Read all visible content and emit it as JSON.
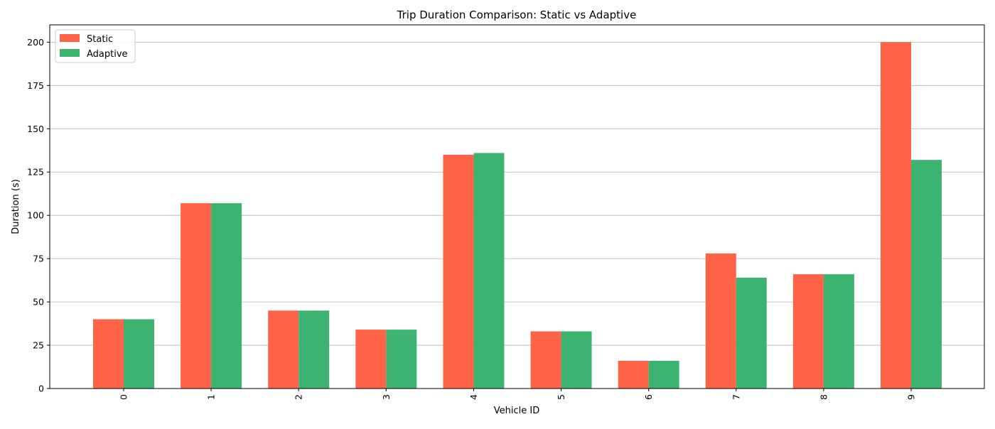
{
  "chart_data": {
    "type": "bar",
    "title": "Trip Duration Comparison: Static vs Adaptive",
    "xlabel": "Vehicle ID",
    "ylabel": "Duration (s)",
    "categories": [
      "0",
      "1",
      "2",
      "3",
      "4",
      "5",
      "6",
      "7",
      "8",
      "9"
    ],
    "series": [
      {
        "name": "Static",
        "color": "#ff6347",
        "values": [
          40,
          107,
          45,
          34,
          135,
          33,
          16,
          78,
          66,
          200
        ]
      },
      {
        "name": "Adaptive",
        "color": "#3cb371",
        "values": [
          40,
          107,
          45,
          34,
          136,
          33,
          16,
          64,
          66,
          132
        ]
      }
    ],
    "ylim": [
      0,
      210
    ],
    "yticks": [
      0,
      25,
      50,
      75,
      100,
      125,
      150,
      175,
      200
    ],
    "grid": "y",
    "legend_position": "top-left",
    "xtick_rotation": "vertical"
  }
}
